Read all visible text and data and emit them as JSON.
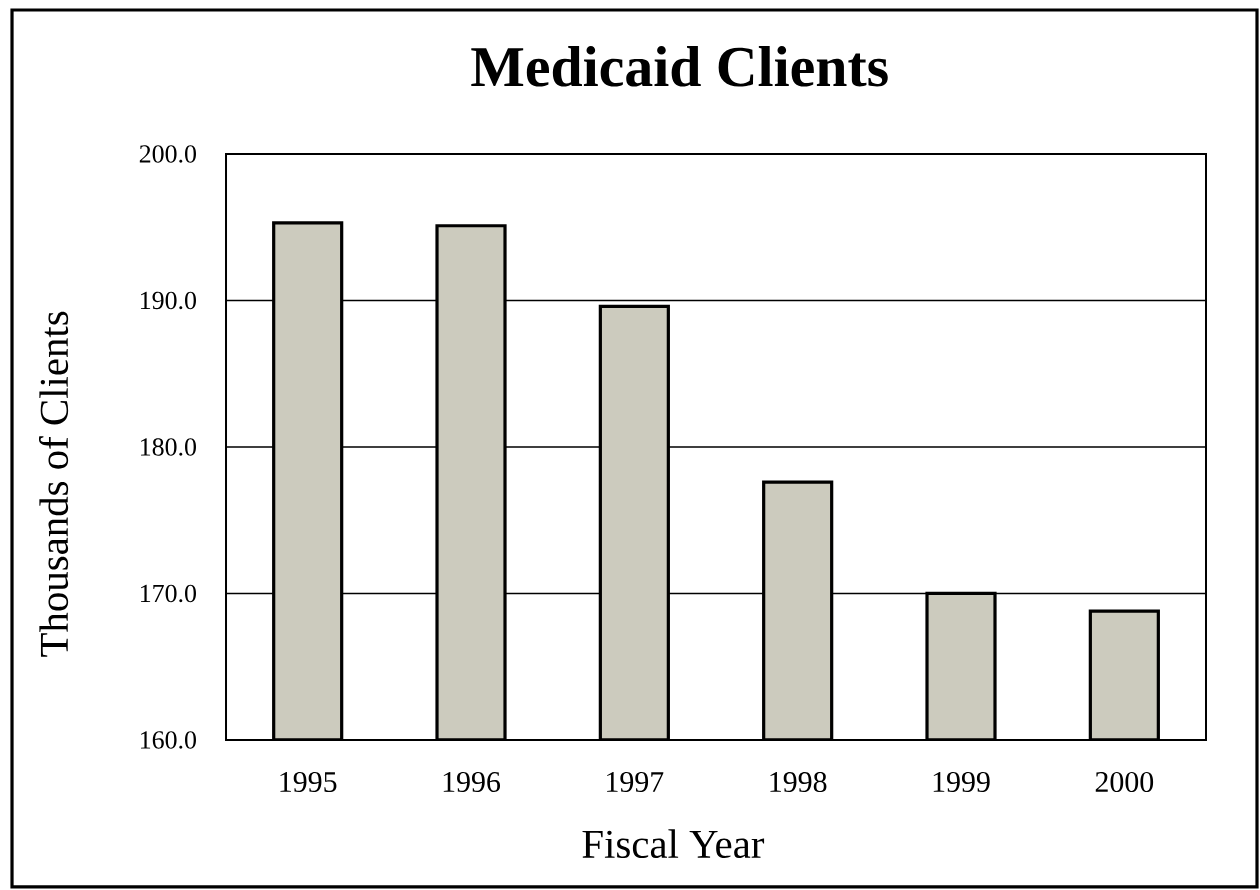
{
  "chart_data": {
    "type": "bar",
    "title": "Medicaid Clients",
    "xlabel": "Fiscal Year",
    "ylabel": "Thousands of Clients",
    "categories": [
      "1995",
      "1996",
      "1997",
      "1998",
      "1999",
      "2000"
    ],
    "values": [
      195.3,
      195.1,
      189.6,
      177.6,
      170.0,
      168.8
    ],
    "color": "#cccbbe",
    "ylim": [
      160,
      200
    ],
    "yticks": [
      {
        "value": 160,
        "label": "160.0"
      },
      {
        "value": 170,
        "label": "170.0"
      },
      {
        "value": 180,
        "label": "180.0"
      },
      {
        "value": 190,
        "label": "190.0"
      },
      {
        "value": 200,
        "label": "200.0"
      }
    ],
    "grid": "y"
  }
}
